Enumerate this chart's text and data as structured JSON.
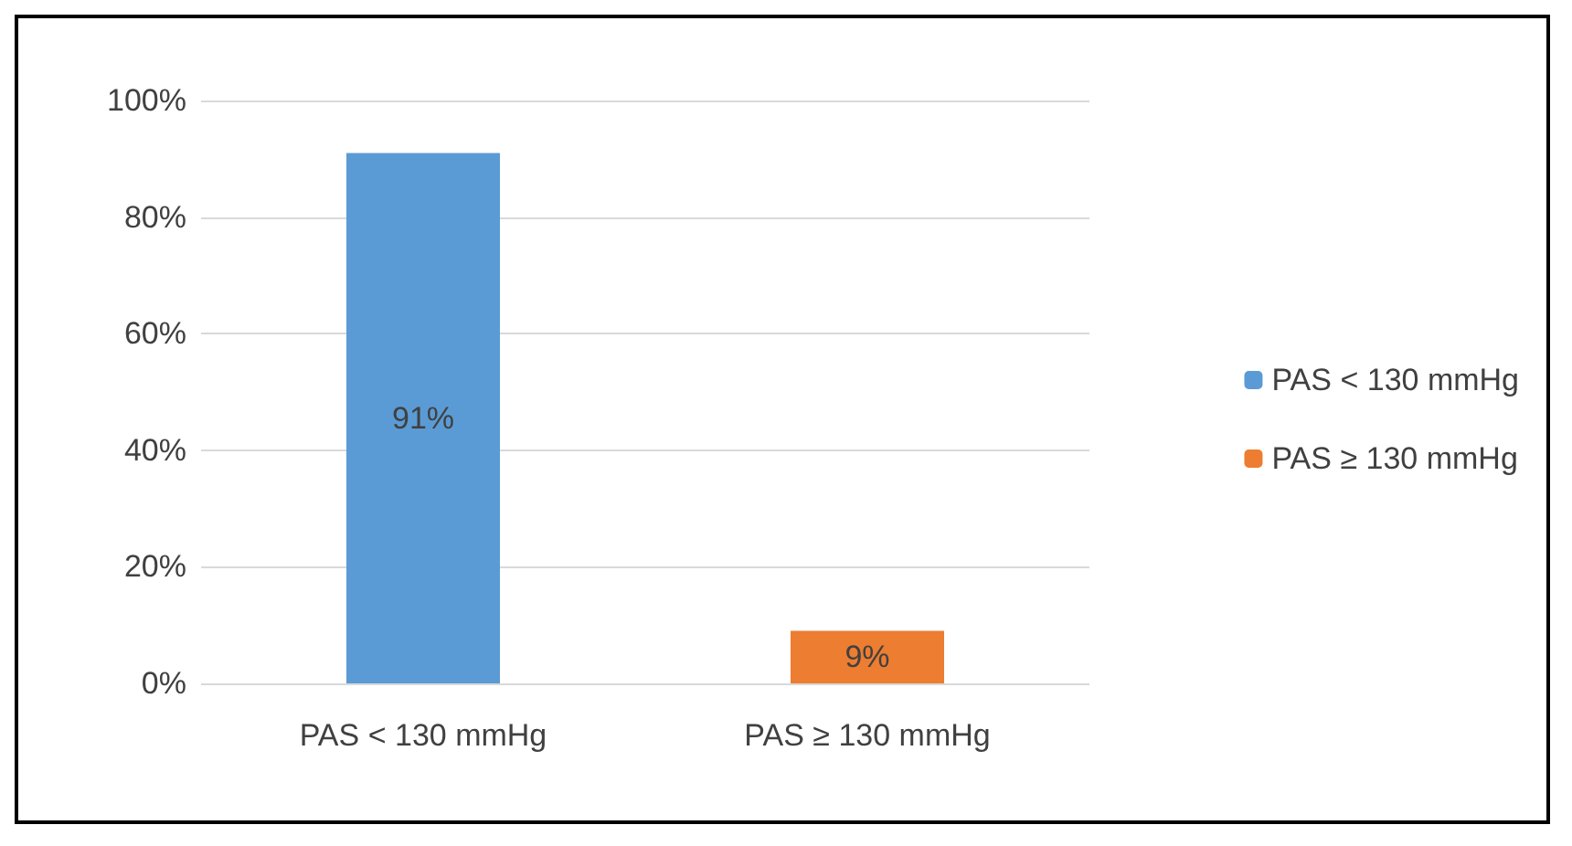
{
  "chart_data": {
    "type": "bar",
    "categories": [
      "PAS < 130 mmHg",
      "PAS ≥ 130 mmHg"
    ],
    "series": [
      {
        "name": "PAS < 130 mmHg",
        "color": "#5b9bd5",
        "values": [
          91,
          null
        ],
        "value_labels": [
          "91%",
          null
        ]
      },
      {
        "name": "PAS ≥ 130 mmHg",
        "color": "#ed7d31",
        "values": [
          null,
          9
        ],
        "value_labels": [
          null,
          "9%"
        ]
      }
    ],
    "ylim": [
      0,
      100
    ],
    "yticks": [
      {
        "value": 0,
        "label": "0%"
      },
      {
        "value": 20,
        "label": "20%"
      },
      {
        "value": 40,
        "label": "40%"
      },
      {
        "value": 60,
        "label": "60%"
      },
      {
        "value": 80,
        "label": "80%"
      },
      {
        "value": 100,
        "label": "100%"
      }
    ],
    "grid": "y",
    "legend": "right"
  }
}
